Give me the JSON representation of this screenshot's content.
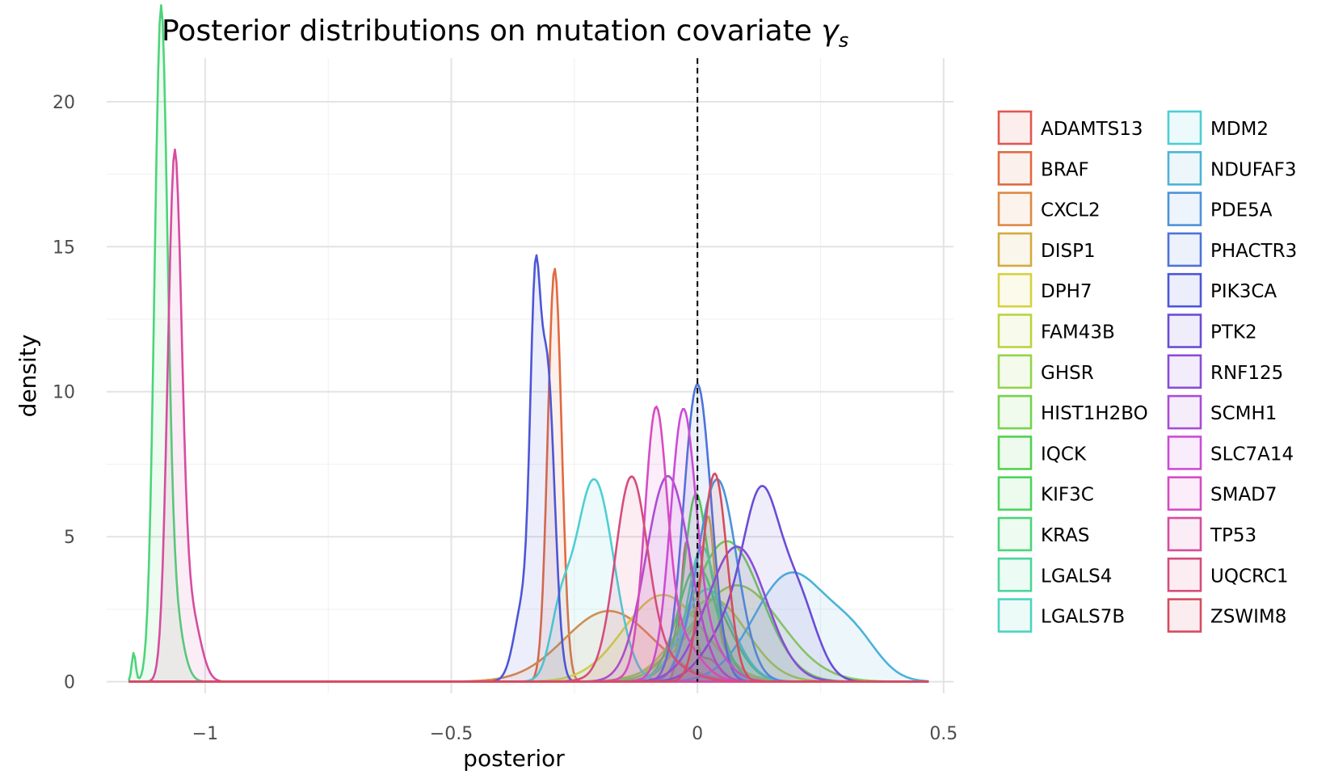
{
  "chart_data": {
    "type": "area",
    "title": "Posterior distributions on mutation covariate ",
    "title_symbol": "γ",
    "title_subscript": "s",
    "xlabel": "posterior",
    "ylabel": "density",
    "xlim": [
      -1.2,
      0.52
    ],
    "ylim": [
      -0.4,
      21.5
    ],
    "x_ticks": [
      -1,
      -0.5,
      0,
      0.5
    ],
    "x_tick_labels": [
      "−1",
      "−0.5",
      "0",
      "0.5"
    ],
    "y_ticks": [
      0,
      5,
      10,
      15,
      20
    ],
    "y_tick_labels": [
      "0",
      "5",
      "10",
      "15",
      "20"
    ],
    "reference_line": {
      "x": 0,
      "style": "dashed"
    },
    "grid": true,
    "legend_position": "right",
    "series": [
      {
        "name": "ADAMTS13",
        "color": "#E0574F",
        "components": [
          [
            -0.022,
            0.012,
            0.14
          ],
          [
            0.02,
            0.025,
            0.05
          ]
        ]
      },
      {
        "name": "BRAF",
        "color": "#E06A40",
        "components": [
          [
            -0.29,
            0.014,
            0.5
          ]
        ]
      },
      {
        "name": "CXCL2",
        "color": "#DE8844",
        "components": [
          [
            -0.18,
            0.09,
            0.55
          ]
        ]
      },
      {
        "name": "DISP1",
        "color": "#D4AA3E",
        "components": [
          [
            0.022,
            0.012,
            0.12
          ],
          [
            0.005,
            0.05,
            0.23
          ]
        ]
      },
      {
        "name": "DPH7",
        "color": "#D4D23E",
        "components": [
          [
            -0.07,
            0.08,
            0.6
          ]
        ]
      },
      {
        "name": "FAM43B",
        "color": "#B9D43E",
        "components": [
          [
            0.03,
            0.07,
            0.5
          ]
        ]
      },
      {
        "name": "GHSR",
        "color": "#94D44C",
        "components": [
          [
            0.08,
            0.09,
            0.75
          ]
        ]
      },
      {
        "name": "HIST1H2BO",
        "color": "#72D44C",
        "components": [
          [
            0.06,
            0.07,
            0.85
          ]
        ]
      },
      {
        "name": "IQCK",
        "color": "#52D14E",
        "components": [
          [
            -0.005,
            0.02,
            0.2
          ],
          [
            0.02,
            0.05,
            0.35
          ]
        ]
      },
      {
        "name": "KIF3C",
        "color": "#4CD45C",
        "components": [
          [
            0.0,
            0.04,
            0.4
          ]
        ]
      },
      {
        "name": "KRAS",
        "color": "#4CD47A",
        "components": [
          [
            -1.09,
            0.013,
            0.7
          ],
          [
            -1.07,
            0.02,
            0.15
          ],
          [
            -1.145,
            0.004,
            0.01
          ]
        ]
      },
      {
        "name": "LGALS4",
        "color": "#4CD49C",
        "components": [
          [
            0.01,
            0.03,
            0.35
          ]
        ]
      },
      {
        "name": "LGALS7B",
        "color": "#4CD4BE",
        "components": [
          [
            0.02,
            0.05,
            0.4
          ]
        ]
      },
      {
        "name": "MDM2",
        "color": "#4CCFD4",
        "components": [
          [
            -0.21,
            0.04,
            0.7
          ],
          [
            -0.28,
            0.02,
            0.08
          ]
        ]
      },
      {
        "name": "NDUFAF3",
        "color": "#4CB3D9",
        "components": [
          [
            0.19,
            0.075,
            0.7
          ],
          [
            0.32,
            0.05,
            0.15
          ]
        ]
      },
      {
        "name": "PDE5A",
        "color": "#4C93D9",
        "components": [
          [
            0.04,
            0.04,
            0.7
          ]
        ]
      },
      {
        "name": "PHACTR3",
        "color": "#4C73D9",
        "components": [
          [
            0.0,
            0.028,
            0.72
          ]
        ]
      },
      {
        "name": "PIK3CA",
        "color": "#4C56D6",
        "components": [
          [
            -0.33,
            0.01,
            0.25
          ],
          [
            -0.305,
            0.015,
            0.4
          ],
          [
            -0.35,
            0.02,
            0.15
          ]
        ]
      },
      {
        "name": "PTK2",
        "color": "#6B4CD6",
        "components": [
          [
            0.13,
            0.035,
            0.45
          ],
          [
            0.2,
            0.04,
            0.3
          ],
          [
            0.07,
            0.05,
            0.25
          ]
        ]
      },
      {
        "name": "RNF125",
        "color": "#8A4CD6",
        "components": [
          [
            0.08,
            0.06,
            0.7
          ]
        ]
      },
      {
        "name": "SCMH1",
        "color": "#AA4CD6",
        "components": [
          [
            -0.06,
            0.045,
            0.8
          ]
        ]
      },
      {
        "name": "SLC7A14",
        "color": "#CB4CD6",
        "components": [
          [
            -0.03,
            0.025,
            0.5
          ],
          [
            0.0,
            0.045,
            0.2
          ]
        ]
      },
      {
        "name": "SMAD7",
        "color": "#D64CC2",
        "components": [
          [
            -0.085,
            0.022,
            0.45
          ],
          [
            -0.05,
            0.045,
            0.2
          ]
        ]
      },
      {
        "name": "TP53",
        "color": "#D64CA0",
        "components": [
          [
            -1.062,
            0.014,
            0.62
          ],
          [
            -1.03,
            0.02,
            0.12
          ]
        ]
      },
      {
        "name": "UQCRC1",
        "color": "#D64C7E",
        "components": [
          [
            -0.135,
            0.032,
            0.5
          ],
          [
            -0.1,
            0.06,
            0.15
          ]
        ]
      },
      {
        "name": "ZSWIM8",
        "color": "#D64C5E",
        "components": [
          [
            0.035,
            0.025,
            0.45
          ]
        ]
      }
    ]
  }
}
